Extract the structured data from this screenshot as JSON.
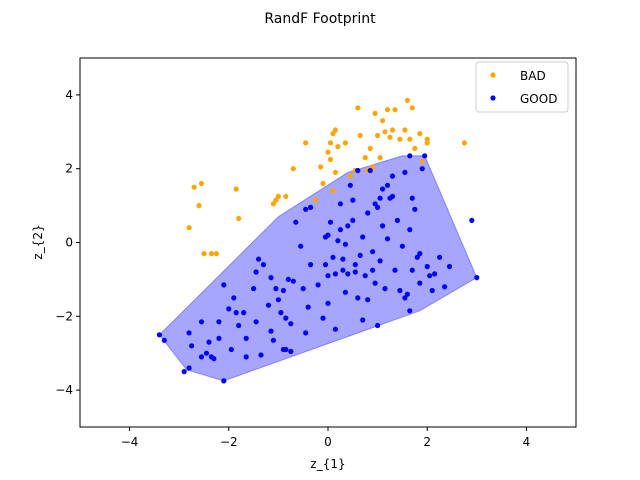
{
  "chart_data": {
    "type": "scatter",
    "title": "RandF Footprint",
    "xlabel": "z_{1}",
    "ylabel": "z_{2}",
    "xlim": [
      -5,
      5
    ],
    "ylim": [
      -5,
      5
    ],
    "xticks": [
      -4,
      -2,
      0,
      2,
      4
    ],
    "yticks": [
      -4,
      -2,
      0,
      2,
      4
    ],
    "xtick_labels": [
      "−4",
      "−2",
      "0",
      "2",
      "4"
    ],
    "ytick_labels": [
      "−4",
      "−2",
      "0",
      "2",
      "4"
    ],
    "grid": false,
    "legend": {
      "position": "top-right",
      "entries": [
        "BAD",
        "GOOD"
      ]
    },
    "footprint": {
      "color": "#0000ff",
      "opacity": 0.35,
      "polygon": [
        [
          -3.4,
          -2.5
        ],
        [
          -1.0,
          0.7
        ],
        [
          0.4,
          1.9
        ],
        [
          1.5,
          2.35
        ],
        [
          1.95,
          2.35
        ],
        [
          3.0,
          -0.95
        ],
        [
          1.85,
          -1.85
        ],
        [
          -2.1,
          -3.75
        ],
        [
          -2.85,
          -3.45
        ]
      ]
    },
    "series": [
      {
        "name": "BAD",
        "color": "#ffa500",
        "points": [
          [
            -2.8,
            0.4
          ],
          [
            -2.7,
            1.5
          ],
          [
            -2.6,
            1.0
          ],
          [
            -2.55,
            1.6
          ],
          [
            -2.5,
            -0.3
          ],
          [
            -2.35,
            -0.3
          ],
          [
            -2.25,
            -0.3
          ],
          [
            -1.85,
            1.45
          ],
          [
            -1.8,
            0.65
          ],
          [
            -1.1,
            1.05
          ],
          [
            -1.05,
            1.15
          ],
          [
            -1.0,
            1.25
          ],
          [
            -0.85,
            1.25
          ],
          [
            -0.7,
            2.0
          ],
          [
            -0.45,
            2.7
          ],
          [
            -0.25,
            1.15
          ],
          [
            -0.15,
            2.05
          ],
          [
            -0.1,
            1.6
          ],
          [
            0.0,
            2.45
          ],
          [
            0.05,
            2.25
          ],
          [
            0.1,
            2.95
          ],
          [
            0.15,
            3.05
          ],
          [
            0.05,
            2.7
          ],
          [
            0.1,
            1.4
          ],
          [
            0.15,
            1.9
          ],
          [
            0.2,
            2.6
          ],
          [
            0.35,
            2.7
          ],
          [
            0.45,
            1.8
          ],
          [
            0.55,
            1.95
          ],
          [
            0.6,
            3.65
          ],
          [
            0.65,
            2.9
          ],
          [
            0.75,
            2.3
          ],
          [
            0.8,
            1.95
          ],
          [
            0.85,
            2.55
          ],
          [
            0.9,
            2.05
          ],
          [
            0.95,
            3.5
          ],
          [
            1.0,
            2.9
          ],
          [
            1.05,
            2.3
          ],
          [
            1.1,
            3.3
          ],
          [
            1.15,
            3.0
          ],
          [
            1.2,
            3.6
          ],
          [
            1.25,
            2.85
          ],
          [
            1.3,
            3.05
          ],
          [
            1.35,
            3.6
          ],
          [
            1.45,
            2.8
          ],
          [
            1.55,
            3.05
          ],
          [
            1.6,
            3.85
          ],
          [
            1.65,
            2.8
          ],
          [
            1.7,
            3.65
          ],
          [
            1.75,
            2.55
          ],
          [
            1.85,
            2.95
          ],
          [
            1.9,
            2.2
          ],
          [
            2.0,
            2.7
          ],
          [
            2.0,
            2.8
          ],
          [
            2.75,
            2.7
          ]
        ]
      },
      {
        "name": "GOOD",
        "color": "#0000ff",
        "points": [
          [
            -3.4,
            -2.5
          ],
          [
            -3.3,
            -2.65
          ],
          [
            -2.9,
            -3.5
          ],
          [
            -2.8,
            -3.4
          ],
          [
            -2.8,
            -2.45
          ],
          [
            -2.75,
            -2.8
          ],
          [
            -2.55,
            -3.1
          ],
          [
            -2.55,
            -2.15
          ],
          [
            -2.45,
            -3.0
          ],
          [
            -2.4,
            -2.7
          ],
          [
            -2.35,
            -3.1
          ],
          [
            -2.3,
            -3.15
          ],
          [
            -2.2,
            -2.15
          ],
          [
            -2.2,
            -2.6
          ],
          [
            -2.1,
            -3.75
          ],
          [
            -2.1,
            -1.15
          ],
          [
            -2.0,
            -1.8
          ],
          [
            -1.95,
            -2.9
          ],
          [
            -1.9,
            -1.5
          ],
          [
            -1.85,
            -1.9
          ],
          [
            -1.8,
            -2.25
          ],
          [
            -1.7,
            -1.9
          ],
          [
            -1.65,
            -2.6
          ],
          [
            -1.65,
            -3.1
          ],
          [
            -1.5,
            -1.25
          ],
          [
            -1.45,
            -2.15
          ],
          [
            -1.45,
            -0.8
          ],
          [
            -1.4,
            -0.45
          ],
          [
            -1.35,
            -3.05
          ],
          [
            -1.3,
            -0.6
          ],
          [
            -1.2,
            -1.7
          ],
          [
            -1.15,
            -2.4
          ],
          [
            -1.15,
            -0.95
          ],
          [
            -1.1,
            -2.65
          ],
          [
            -1.05,
            -1.25
          ],
          [
            -1.0,
            -1.55
          ],
          [
            -0.95,
            -1.9
          ],
          [
            -0.9,
            -1.3
          ],
          [
            -0.9,
            -2.9
          ],
          [
            -0.85,
            -2.05
          ],
          [
            -0.85,
            -2.9
          ],
          [
            -0.8,
            -1.0
          ],
          [
            -0.75,
            -2.2
          ],
          [
            -0.75,
            -2.95
          ],
          [
            -0.7,
            -1.05
          ],
          [
            -0.65,
            0.55
          ],
          [
            -0.55,
            -0.1
          ],
          [
            -0.5,
            -1.25
          ],
          [
            -0.45,
            -2.45
          ],
          [
            -0.45,
            0.9
          ],
          [
            -0.4,
            -1.75
          ],
          [
            -0.35,
            0.95
          ],
          [
            -0.35,
            -0.6
          ],
          [
            -0.2,
            -1.15
          ],
          [
            -0.1,
            -2.05
          ],
          [
            -0.05,
            0.15
          ],
          [
            -0.05,
            -0.6
          ],
          [
            0.0,
            -0.9
          ],
          [
            0.0,
            0.2
          ],
          [
            0.0,
            -1.65
          ],
          [
            0.05,
            0.55
          ],
          [
            0.1,
            -0.4
          ],
          [
            0.15,
            -0.85
          ],
          [
            0.15,
            -2.35
          ],
          [
            0.2,
            0.05
          ],
          [
            0.25,
            0.35
          ],
          [
            0.25,
            1.05
          ],
          [
            0.3,
            -0.45
          ],
          [
            0.3,
            -0.75
          ],
          [
            0.35,
            -1.35
          ],
          [
            0.35,
            -0.05
          ],
          [
            0.4,
            -0.85
          ],
          [
            0.4,
            0.45
          ],
          [
            0.45,
            1.55
          ],
          [
            0.5,
            1.15
          ],
          [
            0.5,
            0.6
          ],
          [
            0.55,
            -0.6
          ],
          [
            0.55,
            -0.8
          ],
          [
            0.6,
            -1.5
          ],
          [
            0.6,
            1.95
          ],
          [
            0.65,
            -0.35
          ],
          [
            0.7,
            -2.1
          ],
          [
            0.7,
            0.15
          ],
          [
            0.75,
            -0.9
          ],
          [
            0.8,
            0.8
          ],
          [
            0.8,
            -1.55
          ],
          [
            0.85,
            1.95
          ],
          [
            0.9,
            -0.25
          ],
          [
            0.9,
            -0.75
          ],
          [
            0.95,
            1.05
          ],
          [
            0.95,
            -1.1
          ],
          [
            1.0,
            0.95
          ],
          [
            1.0,
            -2.25
          ],
          [
            1.05,
            1.2
          ],
          [
            1.05,
            -0.5
          ],
          [
            1.1,
            0.45
          ],
          [
            1.1,
            1.45
          ],
          [
            1.15,
            -1.25
          ],
          [
            1.2,
            1.55
          ],
          [
            1.2,
            0.1
          ],
          [
            1.25,
            1.2
          ],
          [
            1.3,
            1.8
          ],
          [
            1.3,
            1.25
          ],
          [
            1.35,
            -0.75
          ],
          [
            1.4,
            0.6
          ],
          [
            1.45,
            -1.3
          ],
          [
            1.5,
            -0.1
          ],
          [
            1.55,
            1.9
          ],
          [
            1.55,
            -1.5
          ],
          [
            1.6,
            -1.4
          ],
          [
            1.65,
            -1.85
          ],
          [
            1.65,
            2.35
          ],
          [
            1.65,
            0.35
          ],
          [
            1.7,
            1.2
          ],
          [
            1.7,
            -0.75
          ],
          [
            1.75,
            0.9
          ],
          [
            1.8,
            -0.4
          ],
          [
            1.85,
            -1.1
          ],
          [
            1.85,
            -0.3
          ],
          [
            1.9,
            2.0
          ],
          [
            1.95,
            2.35
          ],
          [
            2.0,
            -0.65
          ],
          [
            2.05,
            -0.9
          ],
          [
            2.1,
            -1.3
          ],
          [
            2.15,
            -0.85
          ],
          [
            2.25,
            -0.4
          ],
          [
            2.35,
            -1.2
          ],
          [
            2.45,
            -0.65
          ],
          [
            2.9,
            0.6
          ],
          [
            3.0,
            -0.95
          ]
        ]
      }
    ]
  }
}
